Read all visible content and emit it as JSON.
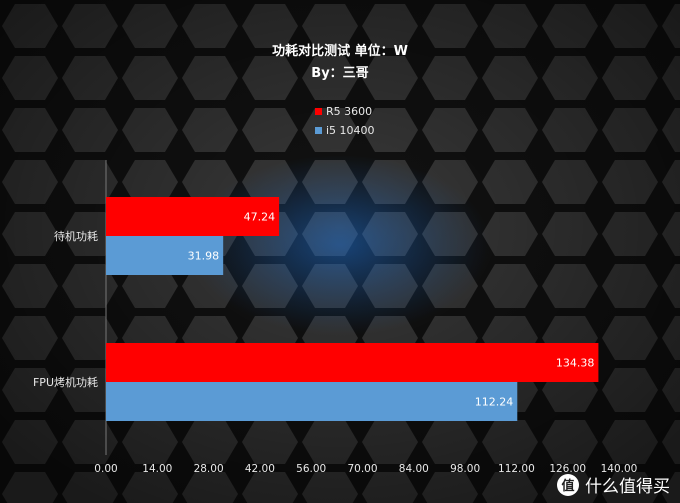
{
  "chart_data": {
    "type": "bar",
    "orientation": "horizontal",
    "title": "功耗对比测试 单位：W",
    "subtitle": "By：三哥",
    "categories": [
      "待机功耗",
      "FPU烤机功耗"
    ],
    "series": [
      {
        "name": "R5 3600",
        "color": "#ff0000",
        "values": [
          47.24,
          134.38
        ],
        "labels": [
          "47.24",
          "134.38"
        ]
      },
      {
        "name": "i5 10400",
        "color": "#5b9bd5",
        "values": [
          31.98,
          112.24
        ],
        "labels": [
          "31.98",
          "112.24"
        ]
      }
    ],
    "xlim": [
      0,
      140
    ],
    "xticks": [
      "0.00",
      "14.00",
      "28.00",
      "42.00",
      "56.00",
      "70.00",
      "84.00",
      "98.00",
      "112.00",
      "126.00",
      "140.00"
    ],
    "legend": "top-center",
    "grid": false
  },
  "watermark": {
    "logo_char": "值",
    "text": "什么值得买"
  }
}
